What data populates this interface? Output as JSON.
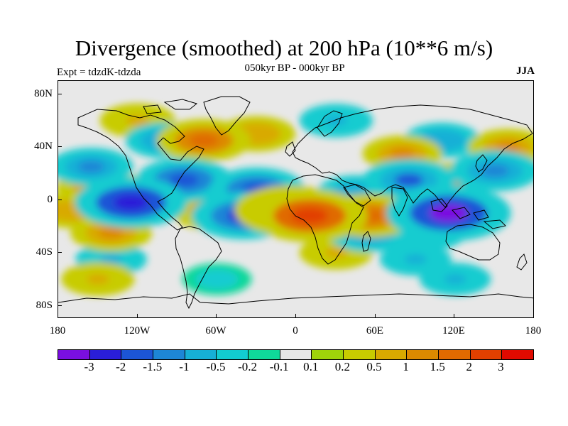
{
  "title": "Divergence (smoothed) at 200 hPa (10**6 m/s)",
  "subtitle": "050kyr BP - 000kyr BP",
  "experiment": "Expt = tdzdK-tdzda",
  "season": "JJA",
  "lat_labels": [
    "80N",
    "40N",
    "0",
    "40S",
    "80S"
  ],
  "lon_labels": [
    "180",
    "120W",
    "60W",
    "0",
    "60E",
    "120E",
    "180"
  ],
  "colorbar": {
    "colors": [
      "#7a0fe0",
      "#2a1ed8",
      "#1c55d6",
      "#1d86d6",
      "#16b0d6",
      "#12ccd0",
      "#0fd89a",
      "#e6e6e6",
      "#9fd40a",
      "#c8cc00",
      "#d8aa00",
      "#dc8a00",
      "#e06a00",
      "#e24000",
      "#e00a00"
    ],
    "labels": [
      "-3",
      "-2",
      "-1.5",
      "-1",
      "-0.5",
      "-0.2",
      "-0.1",
      "0.1",
      "0.2",
      "0.5",
      "1",
      "1.5",
      "2",
      "3"
    ]
  },
  "chart_data": {
    "type": "heatmap",
    "title": "Divergence (smoothed) at 200 hPa (10**6 m/s)",
    "subtitle": "050kyr BP - 000kyr BP",
    "field": "200 hPa divergence difference, JJA",
    "units": "10**6 m/s",
    "x_range": [
      -180,
      180
    ],
    "y_range": [
      -90,
      90
    ],
    "levels": [
      -3,
      -2,
      -1.5,
      -1,
      -0.5,
      -0.2,
      -0.1,
      0.1,
      0.2,
      0.5,
      1,
      1.5,
      2,
      3
    ],
    "features": [
      {
        "lon": -5,
        "lat": -8,
        "value": 2.5
      },
      {
        "lon": 10,
        "lat": -12,
        "value": 2.8
      },
      {
        "lon": -60,
        "lat": -8,
        "value": 1.6
      },
      {
        "lon": -150,
        "lat": 10,
        "value": 1.2
      },
      {
        "lon": -100,
        "lat": 10,
        "value": 0.9
      },
      {
        "lon": -170,
        "lat": -8,
        "value": 0.9
      },
      {
        "lon": -140,
        "lat": -25,
        "value": 1.1
      },
      {
        "lon": -120,
        "lat": 60,
        "value": 0.8
      },
      {
        "lon": -70,
        "lat": 45,
        "value": 1.7
      },
      {
        "lon": -30,
        "lat": 50,
        "value": 0.9
      },
      {
        "lon": 80,
        "lat": 35,
        "value": 1.0
      },
      {
        "lon": 55,
        "lat": -12,
        "value": 1.8
      },
      {
        "lon": 95,
        "lat": -5,
        "value": 1.4
      },
      {
        "lon": 120,
        "lat": 15,
        "value": 1.0
      },
      {
        "lon": 160,
        "lat": 40,
        "value": 1.0
      },
      {
        "lon": -150,
        "lat": -60,
        "value": 0.7
      },
      {
        "lon": 30,
        "lat": -40,
        "value": 0.7
      },
      {
        "lon": 115,
        "lat": -10,
        "value": -3.2
      },
      {
        "lon": -125,
        "lat": -2,
        "value": -2.6
      },
      {
        "lon": -40,
        "lat": -12,
        "value": -2.2
      },
      {
        "lon": -85,
        "lat": 15,
        "value": -1.8
      },
      {
        "lon": -30,
        "lat": 8,
        "value": -1.8
      },
      {
        "lon": 85,
        "lat": 15,
        "value": -1.6
      },
      {
        "lon": 150,
        "lat": 22,
        "value": -1.5
      },
      {
        "lon": -155,
        "lat": 25,
        "value": -1.2
      },
      {
        "lon": 45,
        "lat": 5,
        "value": -1.0
      },
      {
        "lon": 110,
        "lat": 45,
        "value": -0.9
      },
      {
        "lon": 55,
        "lat": -25,
        "value": -1.2
      },
      {
        "lon": 100,
        "lat": -25,
        "value": -0.8
      },
      {
        "lon": -100,
        "lat": 45,
        "value": -0.9
      },
      {
        "lon": 30,
        "lat": 60,
        "value": -0.7
      },
      {
        "lon": -140,
        "lat": -45,
        "value": -0.6
      },
      {
        "lon": 90,
        "lat": -45,
        "value": -0.6
      },
      {
        "lon": 120,
        "lat": -60,
        "value": -0.6
      },
      {
        "lon": -60,
        "lat": -60,
        "value": -0.5
      }
    ]
  }
}
